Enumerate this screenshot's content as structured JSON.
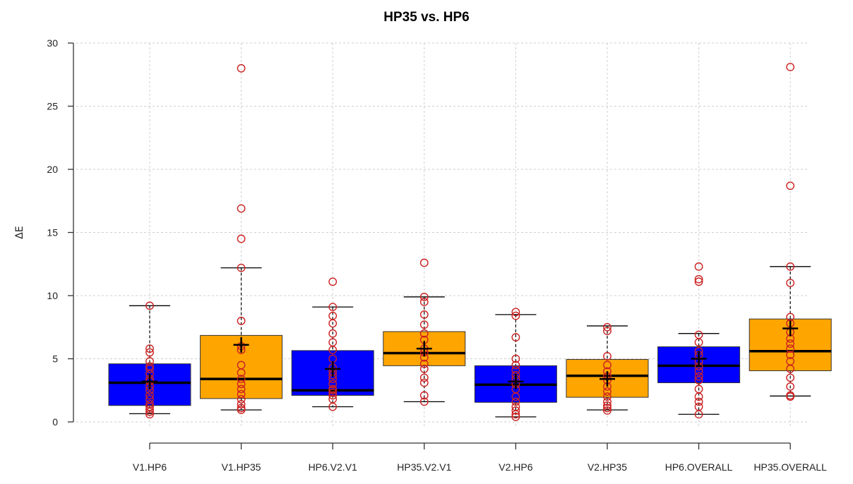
{
  "chart_data": {
    "type": "box",
    "title": "HP35 vs. HP6",
    "xlabel": "",
    "ylabel": "ΔE",
    "ylim": [
      0,
      30
    ],
    "yticks": [
      "0",
      "5",
      "10",
      "15",
      "20",
      "25",
      "30"
    ],
    "grid": true,
    "colors": {
      "HP6": "#0000ff",
      "HP35": "#ffa500",
      "points": "#cc2222",
      "mean_marker": "#000000"
    },
    "categories": [
      "V1.HP6",
      "V1.HP35",
      "HP6.V2.V1",
      "HP35.V2.V1",
      "V2.HP6",
      "V2.HP35",
      "HP6.OVERALL",
      "HP35.OVERALL"
    ],
    "boxes": [
      {
        "label": "V1.HP6",
        "group": "HP6",
        "whisker_low": 0.65,
        "q1": 1.3,
        "median": 3.1,
        "q3": 4.6,
        "whisker_high": 9.2,
        "mean": 3.2,
        "points": [
          0.6,
          0.8,
          1.0,
          1.2,
          1.4,
          1.8,
          2.1,
          2.5,
          2.8,
          3.2,
          3.4,
          3.8,
          4.2,
          4.4,
          4.8,
          5.5,
          5.8,
          9.2
        ]
      },
      {
        "label": "V1.HP35",
        "group": "HP35",
        "whisker_low": 0.95,
        "q1": 1.85,
        "median": 3.4,
        "q3": 6.85,
        "whisker_high": 12.2,
        "mean": 6.1,
        "points": [
          0.95,
          1.1,
          1.4,
          1.8,
          2.2,
          2.6,
          3.0,
          3.4,
          3.9,
          4.5,
          5.7,
          6.0,
          8.0,
          12.2,
          14.5,
          16.9,
          28.0
        ]
      },
      {
        "label": "HP6.V2.V1",
        "group": "HP6",
        "whisker_low": 1.2,
        "q1": 2.1,
        "median": 2.5,
        "q3": 5.65,
        "whisker_high": 9.1,
        "mean": 4.2,
        "points": [
          1.2,
          1.8,
          2.1,
          2.3,
          2.5,
          2.6,
          3.0,
          3.4,
          3.7,
          4.0,
          4.3,
          5.0,
          5.7,
          6.3,
          7.0,
          7.8,
          8.4,
          9.1,
          11.1
        ]
      },
      {
        "label": "HP35.V2.V1",
        "group": "HP35",
        "whisker_low": 1.6,
        "q1": 4.45,
        "median": 5.45,
        "q3": 7.15,
        "whisker_high": 9.9,
        "mean": 5.8,
        "points": [
          1.6,
          2.1,
          3.1,
          3.5,
          4.2,
          4.6,
          5.1,
          5.5,
          5.8,
          6.5,
          7.0,
          7.7,
          8.5,
          9.5,
          9.9,
          12.6
        ]
      },
      {
        "label": "V2.HP6",
        "group": "HP6",
        "whisker_low": 0.4,
        "q1": 1.55,
        "median": 2.95,
        "q3": 4.45,
        "whisker_high": 8.5,
        "mean": 3.2,
        "points": [
          0.4,
          0.6,
          0.9,
          1.2,
          1.6,
          2.0,
          2.6,
          3.0,
          3.4,
          3.7,
          4.1,
          4.5,
          5.0,
          6.7,
          8.4,
          8.7
        ]
      },
      {
        "label": "V2.HP35",
        "group": "HP35",
        "whisker_low": 0.95,
        "q1": 1.95,
        "median": 3.65,
        "q3": 4.95,
        "whisker_high": 7.6,
        "mean": 3.4,
        "points": [
          0.9,
          1.1,
          1.3,
          1.6,
          2.0,
          2.4,
          2.8,
          3.3,
          3.6,
          4.0,
          4.5,
          5.2,
          7.2,
          7.5
        ]
      },
      {
        "label": "HP6.OVERALL",
        "group": "HP6",
        "whisker_low": 0.6,
        "q1": 3.1,
        "median": 4.45,
        "q3": 5.95,
        "whisker_high": 7.0,
        "mean": 5.0,
        "points": [
          0.6,
          1.2,
          1.6,
          2.0,
          2.6,
          3.3,
          3.6,
          4.0,
          4.4,
          4.8,
          5.3,
          5.6,
          6.3,
          6.9,
          11.1,
          11.3,
          12.3
        ]
      },
      {
        "label": "HP35.OVERALL",
        "group": "HP35",
        "whisker_low": 2.05,
        "q1": 4.05,
        "median": 5.6,
        "q3": 8.15,
        "whisker_high": 12.3,
        "mean": 7.4,
        "points": [
          2.0,
          2.1,
          2.8,
          3.5,
          4.2,
          4.8,
          5.3,
          5.8,
          6.2,
          6.6,
          7.1,
          7.8,
          8.3,
          11.0,
          12.3,
          18.7,
          28.1
        ]
      }
    ]
  }
}
